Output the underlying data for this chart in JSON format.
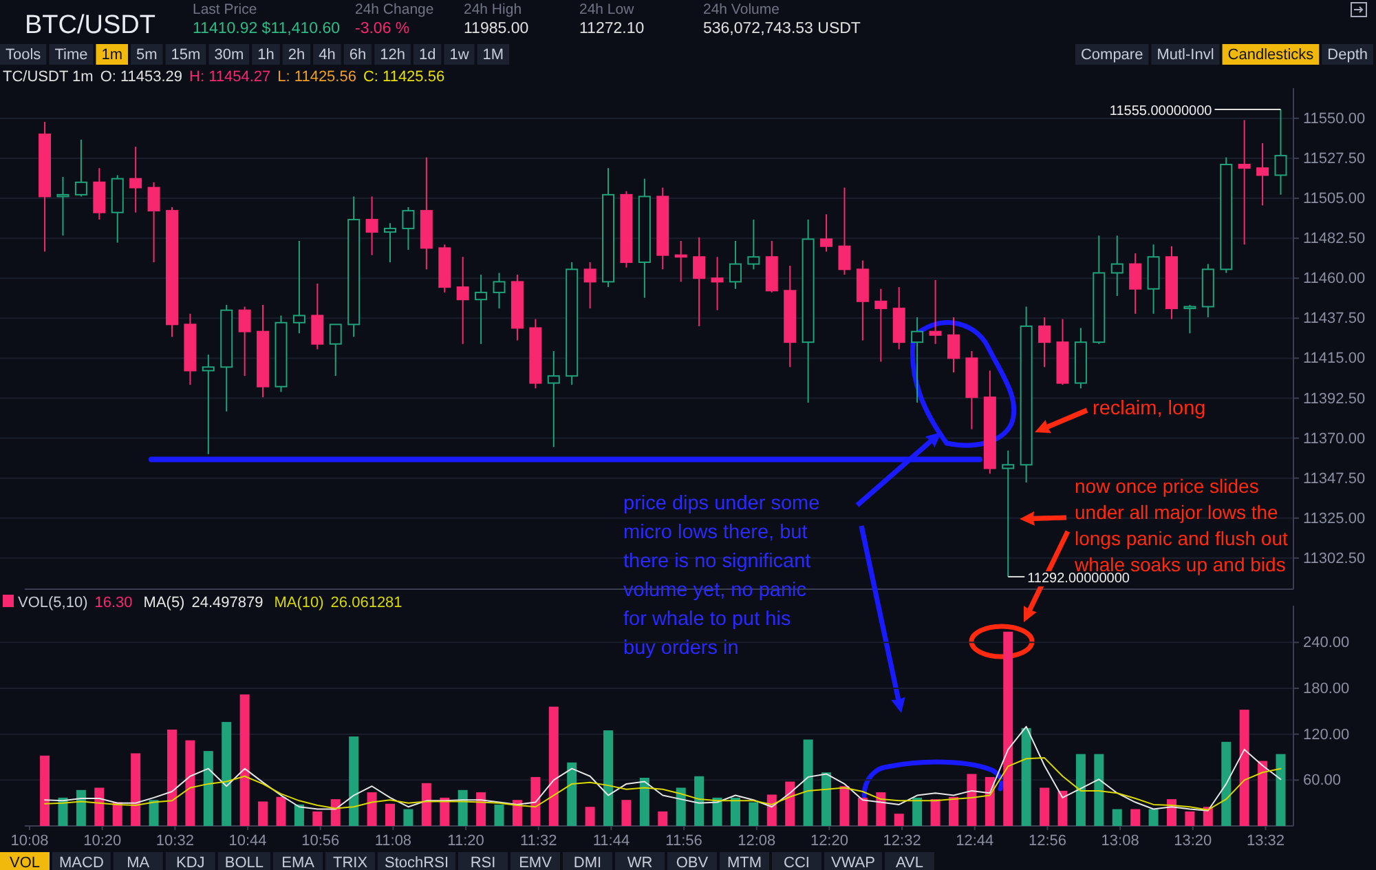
{
  "chart_data": [
    {
      "type": "candlestick",
      "title": "BTC/USDT",
      "x": [
        10.175,
        10.225,
        10.275,
        10.325,
        10.375,
        10.425,
        10.475,
        10.525,
        10.575,
        10.625,
        10.675,
        10.725,
        10.775,
        10.825,
        10.875,
        10.925,
        10.975,
        11.025,
        11.075,
        11.125,
        11.175,
        11.225,
        11.275,
        11.325,
        11.375,
        11.425,
        11.475,
        11.525,
        11.575,
        11.625,
        11.675,
        11.725,
        11.775,
        11.825,
        11.875,
        11.925,
        11.975,
        12.025,
        12.075,
        12.125,
        12.175,
        12.225,
        12.275,
        12.325,
        12.375,
        12.425,
        12.475,
        12.525,
        12.575,
        12.625,
        12.675,
        12.725,
        12.775,
        12.825,
        12.875,
        12.925,
        12.975,
        13.025,
        13.075,
        13.125,
        13.175,
        13.225,
        13.275,
        13.325,
        13.375,
        13.425,
        13.475,
        13.525,
        13.575
      ],
      "ohlc": [
        [
          11541,
          11548,
          11475,
          11506
        ],
        [
          11506,
          11517,
          11484,
          11507
        ],
        [
          11507,
          11538,
          11506,
          11514
        ],
        [
          11514,
          11522,
          11493,
          11497
        ],
        [
          11497,
          11518,
          11480,
          11516
        ],
        [
          11516,
          11534,
          11497,
          11511
        ],
        [
          11511,
          11514,
          11469,
          11498
        ],
        [
          11498,
          11500,
          11427,
          11434
        ],
        [
          11434,
          11440,
          11400,
          11408
        ],
        [
          11408,
          11417,
          11361,
          11410
        ],
        [
          11410,
          11445,
          11385,
          11442
        ],
        [
          11442,
          11444,
          11405,
          11430
        ],
        [
          11430,
          11445,
          11393,
          11399
        ],
        [
          11399,
          11439,
          11396,
          11435
        ],
        [
          11435,
          11481,
          11429,
          11439
        ],
        [
          11439,
          11457,
          11420,
          11423
        ],
        [
          11423,
          11434,
          11405,
          11434
        ],
        [
          11434,
          11506,
          11427,
          11493
        ],
        [
          11493,
          11506,
          11473,
          11486
        ],
        [
          11486,
          11491,
          11469,
          11488
        ],
        [
          11488,
          11500,
          11476,
          11498
        ],
        [
          11498,
          11528,
          11465,
          11477
        ],
        [
          11477,
          11479,
          11452,
          11455
        ],
        [
          11455,
          11472,
          11423,
          11448
        ],
        [
          11448,
          11462,
          11423,
          11452
        ],
        [
          11452,
          11463,
          11443,
          11458
        ],
        [
          11458,
          11462,
          11425,
          11432
        ],
        [
          11432,
          11437,
          11398,
          11401
        ],
        [
          11401,
          11419,
          11365,
          11405
        ],
        [
          11405,
          11469,
          11400,
          11465
        ],
        [
          11465,
          11469,
          11443,
          11458
        ],
        [
          11458,
          11522,
          11455,
          11507
        ],
        [
          11507,
          11509,
          11466,
          11469
        ],
        [
          11469,
          11516,
          11449,
          11506
        ],
        [
          11506,
          11511,
          11465,
          11473
        ],
        [
          11473,
          11481,
          11458,
          11472
        ],
        [
          11472,
          11483,
          11433,
          11460
        ],
        [
          11460,
          11472,
          11442,
          11458
        ],
        [
          11458,
          11481,
          11454,
          11468
        ],
        [
          11468,
          11493,
          11465,
          11472
        ],
        [
          11472,
          11481,
          11452,
          11453
        ],
        [
          11453,
          11467,
          11410,
          11424
        ],
        [
          11424,
          11493,
          11390,
          11482
        ],
        [
          11482,
          11496,
          11475,
          11478
        ],
        [
          11478,
          11511,
          11462,
          11465
        ],
        [
          11465,
          11470,
          11425,
          11447
        ],
        [
          11447,
          11454,
          11413,
          11443
        ],
        [
          11443,
          11455,
          11420,
          11424
        ],
        [
          11424,
          11438,
          11390,
          11430
        ],
        [
          11430,
          11459,
          11423,
          11428
        ],
        [
          11428,
          11438,
          11407,
          11415
        ],
        [
          11415,
          11419,
          11375,
          11393
        ],
        [
          11393,
          11408,
          11350,
          11353
        ],
        [
          11353,
          11363,
          11292,
          11355
        ],
        [
          11355,
          11444,
          11345,
          11433
        ],
        [
          11433,
          11438,
          11410,
          11424
        ],
        [
          11424,
          11437,
          11400,
          11401
        ],
        [
          11401,
          11432,
          11398,
          11424
        ],
        [
          11424,
          11484,
          11423,
          11463
        ],
        [
          11463,
          11484,
          11450,
          11468
        ],
        [
          11468,
          11474,
          11440,
          11454
        ],
        [
          11454,
          11479,
          11440,
          11472
        ],
        [
          11472,
          11478,
          11437,
          11443
        ],
        [
          11443,
          11445,
          11429,
          11444
        ],
        [
          11444,
          11468,
          11438,
          11465
        ],
        [
          11465,
          11528,
          11463,
          11524
        ],
        [
          11524,
          11549,
          11479,
          11522
        ],
        [
          11522,
          11536,
          11501,
          11518
        ],
        [
          11518,
          11555,
          11507,
          11529
        ]
      ],
      "colors": [
        "#f7286f",
        "#1fa37b",
        "#1fa37b",
        "#f7286f",
        "#1fa37b",
        "#f7286f",
        "#f7286f",
        "#f7286f",
        "#f7286f",
        "#1fa37b",
        "#1fa37b",
        "#f7286f",
        "#f7286f",
        "#1fa37b",
        "#1fa37b",
        "#f7286f",
        "#1fa37b",
        "#1fa37b",
        "#f7286f",
        "#1fa37b",
        "#1fa37b",
        "#f7286f",
        "#f7286f",
        "#f7286f",
        "#1fa37b",
        "#1fa37b",
        "#f7286f",
        "#f7286f",
        "#1fa37b",
        "#1fa37b",
        "#f7286f",
        "#1fa37b",
        "#f7286f",
        "#1fa37b",
        "#f7286f",
        "#f7286f",
        "#f7286f",
        "#f7286f",
        "#1fa37b",
        "#1fa37b",
        "#f7286f",
        "#f7286f",
        "#1fa37b",
        "#f7286f",
        "#f7286f",
        "#f7286f",
        "#f7286f",
        "#f7286f",
        "#1fa37b",
        "#f7286f",
        "#f7286f",
        "#f7286f",
        "#f7286f",
        "#1fa37b",
        "#1fa37b",
        "#f7286f",
        "#f7286f",
        "#1fa37b",
        "#1fa37b",
        "#1fa37b",
        "#f7286f",
        "#1fa37b",
        "#f7286f",
        "#1fa37b",
        "#1fa37b",
        "#1fa37b",
        "#f7286f",
        "#f7286f",
        "#1fa37b"
      ],
      "xlim": [
        10.12,
        13.61
      ],
      "ylim": [
        11285,
        11567
      ],
      "series": [
        {
          "type": "line",
          "x": [
            10.468,
            12.747
          ],
          "values": [
            11358,
            11358
          ],
          "color": "#1a1aff"
        }
      ],
      "yticks": [
        {
          "value": 11302.5,
          "label": "11302.50"
        },
        {
          "value": 11325,
          "label": "11325.00"
        },
        {
          "value": 11347.5,
          "label": "11347.50"
        },
        {
          "value": 11370,
          "label": "11370.00"
        },
        {
          "value": 11392.5,
          "label": "11392.50"
        },
        {
          "value": 11415,
          "label": "11415.00"
        },
        {
          "value": 11437.5,
          "label": "11437.50"
        },
        {
          "value": 11460,
          "label": "11460.00"
        },
        {
          "value": 11482.5,
          "label": "11482.50"
        },
        {
          "value": 11505,
          "label": "11505.00"
        },
        {
          "value": 11527.5,
          "label": "11527.50"
        },
        {
          "value": 11550,
          "label": "11550.00"
        }
      ],
      "tick_labels": "y",
      "grid": "y",
      "annotations": [
        "Last Price",
        "11410.92 $11,410.60",
        "24h Change",
        "-3.06 %",
        "24h High",
        "11985.00",
        "24h Low",
        "11272.10",
        "24h Volume",
        "536,072,743.53 USDT",
        "Tools",
        "Time",
        "1m",
        "5m",
        "15m",
        "30m",
        "1h",
        "2h",
        "4h",
        "6h",
        "12h",
        "1d",
        "1w",
        "1M",
        "Compare",
        "Mutl-Invl",
        "Candlesticks",
        "Depth",
        "TC/USDT 1m",
        "O: 11453.29",
        "H: 11454.27",
        "L: 11425.56",
        "C: 11425.56",
        "price dips under some\nmicro lows there, but\nthere is no significant\nvolume yet, no panic\nfor whale to put his\nbuy orders in",
        "reclaim, long",
        "now once price slides\nunder all major lows the\nlongs panic and flush out\nwhale soaks up and bids",
        {
          "text": "11555.00000000",
          "x": 13.575,
          "y": 11555
        },
        {
          "text": "11292.00000000",
          "x": 12.825,
          "y": 11292
        }
      ]
    },
    {
      "type": "bar",
      "x": [
        10.175,
        10.225,
        10.275,
        10.325,
        10.375,
        10.425,
        10.475,
        10.525,
        10.575,
        10.625,
        10.675,
        10.725,
        10.775,
        10.825,
        10.875,
        10.925,
        10.975,
        11.025,
        11.075,
        11.125,
        11.175,
        11.225,
        11.275,
        11.325,
        11.375,
        11.425,
        11.475,
        11.525,
        11.575,
        11.625,
        11.675,
        11.725,
        11.775,
        11.825,
        11.875,
        11.925,
        11.975,
        12.025,
        12.075,
        12.125,
        12.175,
        12.225,
        12.275,
        12.325,
        12.375,
        12.425,
        12.475,
        12.525,
        12.575,
        12.625,
        12.675,
        12.725,
        12.775,
        12.825,
        12.875,
        12.925,
        12.975,
        13.025,
        13.075,
        13.125,
        13.175,
        13.225,
        13.275,
        13.325,
        13.375,
        13.425,
        13.475,
        13.525,
        13.575
      ],
      "series": [
        {
          "name": "VOL(5,10)",
          "colors": [
            "#f7286f",
            "#1fa37b",
            "#1fa37b",
            "#f7286f",
            "#f7286f",
            "#f7286f",
            "#1fa37b",
            "#f7286f",
            "#f7286f",
            "#1fa37b",
            "#1fa37b",
            "#f7286f",
            "#f7286f",
            "#f7286f",
            "#1fa37b",
            "#f7286f",
            "#f7286f",
            "#1fa37b",
            "#f7286f",
            "#f7286f",
            "#1fa37b",
            "#f7286f",
            "#f7286f",
            "#1fa37b",
            "#f7286f",
            "#1fa37b",
            "#f7286f",
            "#f7286f",
            "#f7286f",
            "#1fa37b",
            "#f7286f",
            "#1fa37b",
            "#f7286f",
            "#1fa37b",
            "#f7286f",
            "#1fa37b",
            "#1fa37b",
            "#1fa37b",
            "#1fa37b",
            "#1fa37b",
            "#f7286f",
            "#f7286f",
            "#1fa37b",
            "#1fa37b",
            "#f7286f",
            "#f7286f",
            "#f7286f",
            "#f7286f",
            "#1fa37b",
            "#f7286f",
            "#f7286f",
            "#f7286f",
            "#f7286f",
            "#f7286f",
            "#1fa37b",
            "#f7286f",
            "#f7286f",
            "#1fa37b",
            "#1fa37b",
            "#1fa37b",
            "#f7286f",
            "#1fa37b",
            "#f7286f",
            "#f7286f",
            "#f7286f",
            "#1fa37b",
            "#f7286f",
            "#f7286f",
            "#1fa37b"
          ],
          "values": [
            92,
            37,
            47,
            50,
            31,
            95,
            34,
            126,
            112,
            98,
            136,
            172,
            32,
            38,
            28,
            19,
            35,
            117,
            44,
            29,
            22,
            56,
            37,
            47,
            44,
            28,
            34,
            64,
            156,
            83,
            25,
            125,
            34,
            63,
            19,
            50,
            65,
            37,
            37,
            31,
            41,
            58,
            113,
            70,
            52,
            37,
            44,
            16,
            37,
            35,
            38,
            68,
            64,
            254,
            128,
            50,
            46,
            94,
            94,
            22,
            22,
            22,
            35,
            19,
            25,
            110,
            152,
            85,
            94
          ]
        },
        {
          "name": "MA(5)",
          "type": "line",
          "color": "#e6e6e6",
          "values": [
            34,
            33,
            36,
            36,
            30,
            30,
            37,
            45,
            65,
            75,
            52,
            75,
            57,
            40,
            25,
            22,
            22,
            40,
            52,
            37,
            25,
            33,
            33,
            34,
            34,
            31,
            28,
            31,
            60,
            75,
            65,
            40,
            55,
            58,
            40,
            35,
            30,
            31,
            40,
            34,
            25,
            43,
            64,
            68,
            55,
            34,
            31,
            28,
            40,
            43,
            40,
            46,
            43,
            100,
            130,
            79,
            37,
            49,
            61,
            43,
            31,
            22,
            25,
            22,
            20,
            55,
            100,
            79,
            61
          ]
        },
        {
          "name": "MA(10)",
          "type": "line",
          "color": "#d8d800",
          "values": [
            29,
            30,
            32,
            30,
            28,
            27,
            31,
            33,
            50,
            55,
            58,
            65,
            55,
            42,
            33,
            27,
            23,
            25,
            31,
            34,
            30,
            32,
            32,
            32,
            31,
            30,
            27,
            25,
            40,
            55,
            57,
            53,
            48,
            50,
            48,
            42,
            35,
            33,
            33,
            33,
            28,
            38,
            46,
            48,
            50,
            45,
            35,
            33,
            33,
            33,
            35,
            37,
            40,
            78,
            88,
            89,
            65,
            46,
            46,
            43,
            36,
            28,
            27,
            25,
            21,
            35,
            60,
            70,
            75
          ]
        }
      ],
      "xlim": [
        10.12,
        13.61
      ],
      "xticks": [
        {
          "value": 10.1333,
          "label": "10:08"
        },
        {
          "value": 10.3333,
          "label": "10:20"
        },
        {
          "value": 10.5333,
          "label": "10:32"
        },
        {
          "value": 10.7333,
          "label": "10:44"
        },
        {
          "value": 10.9333,
          "label": "10:56"
        },
        {
          "value": 11.1333,
          "label": "11:08"
        },
        {
          "value": 11.3333,
          "label": "11:20"
        },
        {
          "value": 11.5333,
          "label": "11:32"
        },
        {
          "value": 11.7333,
          "label": "11:44"
        },
        {
          "value": 11.9333,
          "label": "11:56"
        },
        {
          "value": 12.1333,
          "label": "12:08"
        },
        {
          "value": 12.3333,
          "label": "12:20"
        },
        {
          "value": 12.5333,
          "label": "12:32"
        },
        {
          "value": 12.7333,
          "label": "12:44"
        },
        {
          "value": 12.9333,
          "label": "12:56"
        },
        {
          "value": 13.1333,
          "label": "13:08"
        },
        {
          "value": 13.3333,
          "label": "13:20"
        },
        {
          "value": 13.5333,
          "label": "13:32"
        }
      ],
      "ylim": [
        0,
        288
      ],
      "yticks": [
        {
          "value": 60,
          "label": "60.00"
        },
        {
          "value": 120,
          "label": "120.00"
        },
        {
          "value": 180,
          "label": "180.00"
        },
        {
          "value": 240,
          "label": "240.00"
        }
      ],
      "grid": "y",
      "legend": "top left",
      "annotations": [
        "16.30",
        "24.497879",
        "26.061281",
        "VOL",
        "MACD",
        "MA",
        "KDJ",
        "BOLL",
        "EMA",
        "TRIX",
        "StochRSI",
        "RSI",
        "EMV",
        "DMI",
        "WR",
        "OBV",
        "MTM",
        "CCI",
        "VWAP",
        "AVL"
      ]
    }
  ]
}
